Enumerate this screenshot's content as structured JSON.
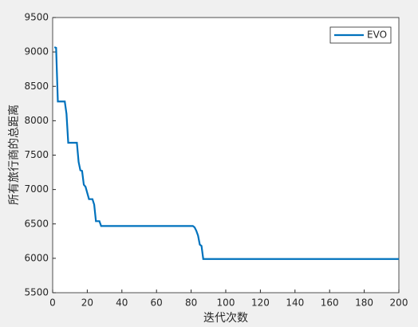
{
  "chart_data": {
    "type": "line",
    "x_label": "迭代次数",
    "y_label": "所有旅行商的总距离",
    "xlim": [
      0,
      200
    ],
    "xticks": [
      0,
      20,
      40,
      60,
      80,
      100,
      120,
      140,
      160,
      180,
      200
    ],
    "ylim": [
      5500,
      9500
    ],
    "yticks": [
      5500,
      6000,
      6500,
      7000,
      7500,
      8000,
      8500,
      9000,
      9500
    ],
    "legend_position": "top-right",
    "series": [
      {
        "name": "EVO",
        "color": "#0072bd",
        "x": [
          1,
          2,
          3,
          7,
          8,
          9,
          10,
          14,
          15,
          16,
          17,
          18,
          19,
          20,
          21,
          23,
          24,
          25,
          27,
          28,
          81,
          82,
          83,
          84,
          85,
          86,
          87,
          200
        ],
        "values": [
          9070,
          9060,
          8280,
          8280,
          8100,
          7680,
          7680,
          7680,
          7400,
          7280,
          7270,
          7070,
          7040,
          6950,
          6860,
          6860,
          6780,
          6540,
          6540,
          6470,
          6470,
          6450,
          6400,
          6330,
          6200,
          6180,
          5990,
          5990
        ]
      }
    ]
  }
}
